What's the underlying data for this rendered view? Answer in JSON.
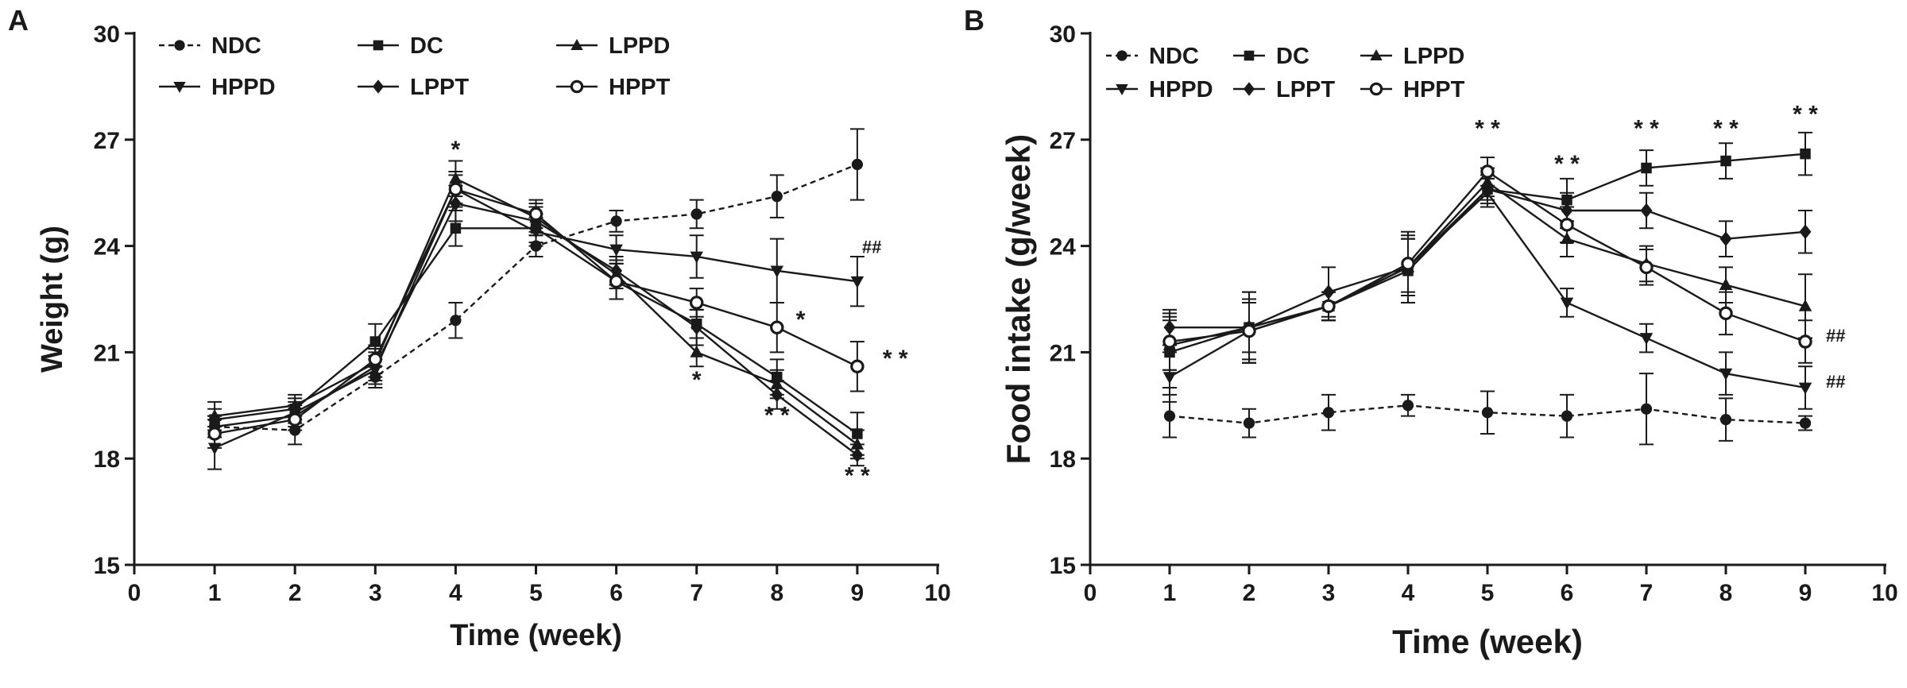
{
  "figure": {
    "panels": [
      "A",
      "B"
    ]
  },
  "legend_order": [
    "NDC",
    "DC",
    "LPPD",
    "HPPD",
    "LPPT",
    "HPPT"
  ],
  "chart_data": [
    {
      "type": "line",
      "panel": "A",
      "title": "",
      "xlabel": "Time (week)",
      "ylabel": "Weight (g)",
      "xlim": [
        0,
        10
      ],
      "ylim": [
        15,
        30
      ],
      "xticks": [
        0,
        1,
        2,
        3,
        4,
        5,
        6,
        7,
        8,
        9,
        10
      ],
      "yticks": [
        15,
        18,
        21,
        24,
        27,
        30
      ],
      "legend_position": "top-left",
      "series": [
        {
          "name": "NDC",
          "marker": "circle",
          "dashed": true,
          "x": [
            1,
            2,
            3,
            4,
            5,
            6,
            7,
            8,
            9
          ],
          "y": [
            18.9,
            18.8,
            20.3,
            21.9,
            24.0,
            24.7,
            24.9,
            25.4,
            26.3
          ],
          "err": [
            0.3,
            0.4,
            0.3,
            0.5,
            0.3,
            0.3,
            0.4,
            0.6,
            1.0
          ]
        },
        {
          "name": "DC",
          "marker": "square",
          "dashed": false,
          "x": [
            1,
            2,
            3,
            4,
            5,
            6,
            7,
            8,
            9
          ],
          "y": [
            19.1,
            19.4,
            21.3,
            24.5,
            24.5,
            23.0,
            21.8,
            20.3,
            18.7
          ],
          "err": [
            0.3,
            0.3,
            0.5,
            0.5,
            0.4,
            0.5,
            0.4,
            0.5,
            0.6
          ]
        },
        {
          "name": "LPPD",
          "marker": "triangle-up",
          "dashed": false,
          "x": [
            1,
            2,
            3,
            4,
            5,
            6,
            7,
            8,
            9
          ],
          "y": [
            19.2,
            19.5,
            20.7,
            25.9,
            24.8,
            23.2,
            21.0,
            20.1,
            18.4
          ],
          "err": [
            0.4,
            0.3,
            0.4,
            0.5,
            0.4,
            0.4,
            0.4,
            0.4,
            0.4
          ]
        },
        {
          "name": "HPPD",
          "marker": "triangle-down",
          "dashed": false,
          "x": [
            1,
            2,
            3,
            4,
            5,
            6,
            7,
            8,
            9
          ],
          "y": [
            18.3,
            19.3,
            20.5,
            25.6,
            24.4,
            23.9,
            23.7,
            23.3,
            23.0
          ],
          "err": [
            0.6,
            0.3,
            0.4,
            0.5,
            0.4,
            0.4,
            0.6,
            0.9,
            0.7
          ]
        },
        {
          "name": "LPPT",
          "marker": "diamond",
          "dashed": false,
          "x": [
            1,
            2,
            3,
            4,
            5,
            6,
            7,
            8,
            9
          ],
          "y": [
            18.9,
            19.2,
            20.6,
            25.2,
            24.7,
            23.3,
            21.7,
            19.8,
            18.1
          ],
          "err": [
            0.3,
            0.3,
            0.4,
            0.5,
            0.4,
            0.4,
            0.5,
            0.4,
            0.3
          ]
        },
        {
          "name": "HPPT",
          "marker": "circle-open",
          "dashed": false,
          "x": [
            1,
            2,
            3,
            4,
            5,
            6,
            7,
            8,
            9
          ],
          "y": [
            18.7,
            19.1,
            20.8,
            25.6,
            24.9,
            23.0,
            22.4,
            21.7,
            20.6
          ],
          "err": [
            0.4,
            0.3,
            0.4,
            0.4,
            0.4,
            0.5,
            0.4,
            0.7,
            0.7
          ]
        }
      ],
      "annotations": [
        {
          "text": "*",
          "x": 4,
          "y": 26.5,
          "dx": 0,
          "dy": 0,
          "size": 30
        },
        {
          "text": "*",
          "x": 7,
          "y": 20.0,
          "dx": 0,
          "dy": 0,
          "size": 30
        },
        {
          "text": "* *",
          "x": 8,
          "y": 19.0,
          "dx": 0,
          "dy": 0,
          "size": 30
        },
        {
          "text": "* *",
          "x": 9,
          "y": 17.3,
          "dx": 0,
          "dy": 0,
          "size": 30
        },
        {
          "text": "*",
          "x": 8,
          "y": 21.7,
          "dx": 24,
          "dy": 0,
          "size": 30
        },
        {
          "text": "* *",
          "x": 9,
          "y": 20.6,
          "dx": 32,
          "dy": 0,
          "size": 30
        },
        {
          "text": "##",
          "x": 9,
          "y": 23.8,
          "dx": 6,
          "dy": 0,
          "size": 22
        }
      ]
    },
    {
      "type": "line",
      "panel": "B",
      "title": "",
      "xlabel": "Time (week)",
      "ylabel": "Food intake (g/week)",
      "xlim": [
        0,
        10
      ],
      "ylim": [
        15,
        30
      ],
      "xticks": [
        0,
        1,
        2,
        3,
        4,
        5,
        6,
        7,
        8,
        9,
        10
      ],
      "yticks": [
        15,
        18,
        21,
        24,
        27,
        30
      ],
      "legend_position": "top-left",
      "series": [
        {
          "name": "NDC",
          "marker": "circle",
          "dashed": true,
          "x": [
            1,
            2,
            3,
            4,
            5,
            6,
            7,
            8,
            9
          ],
          "y": [
            19.2,
            19.0,
            19.3,
            19.5,
            19.3,
            19.2,
            19.4,
            19.1,
            19.0
          ],
          "err": [
            0.6,
            0.4,
            0.5,
            0.3,
            0.6,
            0.6,
            1.0,
            0.6,
            0.2
          ]
        },
        {
          "name": "DC",
          "marker": "square",
          "dashed": false,
          "x": [
            1,
            2,
            3,
            4,
            5,
            6,
            7,
            8,
            9
          ],
          "y": [
            21.0,
            21.7,
            22.3,
            23.3,
            25.6,
            25.3,
            26.2,
            26.4,
            26.6
          ],
          "err": [
            1.0,
            1.0,
            0.4,
            0.9,
            0.4,
            0.6,
            0.5,
            0.5,
            0.6
          ]
        },
        {
          "name": "LPPD",
          "marker": "triangle-up",
          "dashed": false,
          "x": [
            1,
            2,
            3,
            4,
            5,
            6,
            7,
            8,
            9
          ],
          "y": [
            21.2,
            21.7,
            22.3,
            23.4,
            25.8,
            24.2,
            23.5,
            22.9,
            22.3
          ],
          "err": [
            0.7,
            1.0,
            0.4,
            1.0,
            0.4,
            0.5,
            0.5,
            0.5,
            0.9
          ]
        },
        {
          "name": "HPPD",
          "marker": "triangle-down",
          "dashed": false,
          "x": [
            1,
            2,
            3,
            4,
            5,
            6,
            7,
            8,
            9
          ],
          "y": [
            20.3,
            21.6,
            22.3,
            23.4,
            25.5,
            22.4,
            21.4,
            20.4,
            20.0
          ],
          "err": [
            0.7,
            0.9,
            0.4,
            0.8,
            0.4,
            0.4,
            0.4,
            0.6,
            0.6
          ]
        },
        {
          "name": "LPPT",
          "marker": "diamond",
          "dashed": false,
          "x": [
            1,
            2,
            3,
            4,
            5,
            6,
            7,
            8,
            9
          ],
          "y": [
            21.7,
            21.7,
            22.7,
            23.4,
            25.6,
            25.0,
            25.0,
            24.2,
            24.4
          ],
          "err": [
            0.5,
            0.7,
            0.7,
            0.8,
            0.3,
            0.5,
            0.5,
            0.5,
            0.6
          ]
        },
        {
          "name": "HPPT",
          "marker": "circle-open",
          "dashed": false,
          "x": [
            1,
            2,
            3,
            4,
            5,
            6,
            7,
            8,
            9
          ],
          "y": [
            21.3,
            21.6,
            22.3,
            23.5,
            26.1,
            24.6,
            23.4,
            22.1,
            21.3
          ],
          "err": [
            0.8,
            0.8,
            0.4,
            0.8,
            0.4,
            0.5,
            0.5,
            0.6,
            0.6
          ]
        }
      ],
      "annotations": [
        {
          "text": "* *",
          "x": 5,
          "y": 27.1,
          "dx": 0,
          "dy": 0,
          "size": 30
        },
        {
          "text": "* *",
          "x": 6,
          "y": 26.1,
          "dx": 0,
          "dy": 0,
          "size": 30
        },
        {
          "text": "* *",
          "x": 7,
          "y": 27.1,
          "dx": 0,
          "dy": 0,
          "size": 30
        },
        {
          "text": "* *",
          "x": 8,
          "y": 27.1,
          "dx": 0,
          "dy": 0,
          "size": 30
        },
        {
          "text": "* *",
          "x": 9,
          "y": 27.5,
          "dx": 0,
          "dy": 0,
          "size": 30
        },
        {
          "text": "##",
          "x": 9,
          "y": 21.3,
          "dx": 26,
          "dy": 0,
          "size": 22
        },
        {
          "text": "##",
          "x": 9,
          "y": 20.0,
          "dx": 26,
          "dy": 0,
          "size": 22
        }
      ]
    }
  ]
}
